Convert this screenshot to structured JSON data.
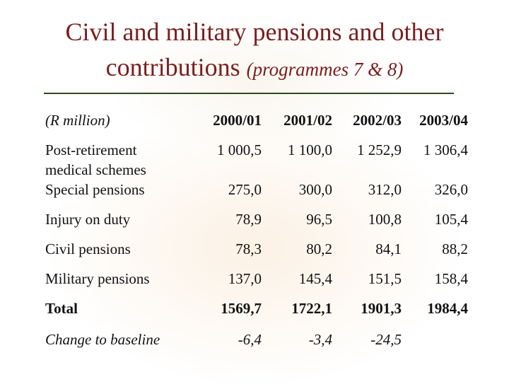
{
  "title": {
    "line1": "Civil and military pensions and other",
    "line2": "contributions",
    "subtitle": "(programmes 7 & 8)"
  },
  "table": {
    "header": [
      "(R million)",
      "2000/01",
      "2001/02",
      "2002/03",
      "2003/04"
    ],
    "rows": [
      {
        "label": "Post-retirement medical schemes",
        "values": [
          "1 000,5",
          "1 100,0",
          "1 252,9",
          "1 306,4"
        ]
      },
      {
        "label": "Special pensions",
        "values": [
          "275,0",
          "300,0",
          "312,0",
          "326,0"
        ]
      },
      {
        "label": "Injury on duty",
        "values": [
          "78,9",
          "96,5",
          "100,8",
          "105,4"
        ]
      },
      {
        "label": "Civil pensions",
        "values": [
          "78,3",
          "80,2",
          "84,1",
          "88,2"
        ]
      },
      {
        "label": "Military pensions",
        "values": [
          "137,0",
          "145,4",
          "151,5",
          "158,4"
        ]
      },
      {
        "label": "Total",
        "values": [
          "1569,7",
          "1722,1",
          "1901,3",
          "1984,4"
        ]
      },
      {
        "label": "Change to baseline",
        "values": [
          "-6,4",
          "-3,4",
          "-24,5"
        ]
      }
    ]
  }
}
